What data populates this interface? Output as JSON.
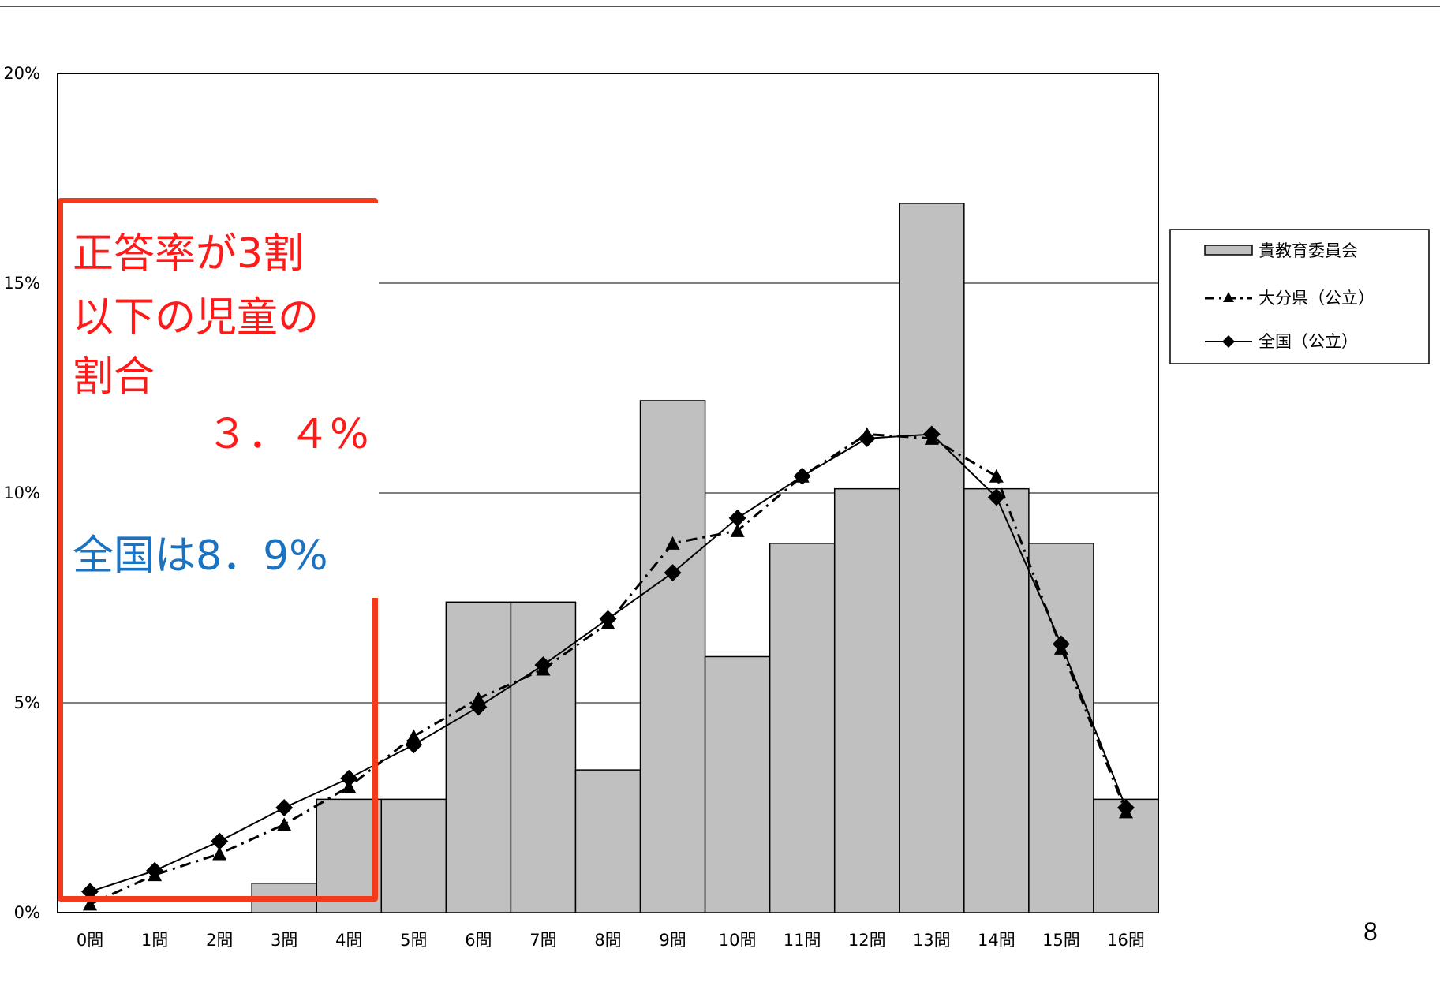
{
  "chart_data": {
    "type": "bar",
    "categories": [
      "0問",
      "1問",
      "2問",
      "3問",
      "4問",
      "5問",
      "6問",
      "7問",
      "8問",
      "9問",
      "10問",
      "11問",
      "12問",
      "13問",
      "14問",
      "15問",
      "16問"
    ],
    "series": [
      {
        "name": "貴教育委員会",
        "kind": "bar",
        "color": "#c0c0c0",
        "values": [
          0,
          0,
          0,
          0.7,
          2.7,
          2.7,
          7.4,
          7.4,
          3.4,
          12.2,
          6.1,
          8.8,
          10.1,
          16.9,
          10.1,
          8.8,
          2.7
        ]
      },
      {
        "name": "大分県（公立）",
        "kind": "line",
        "marker": "triangle",
        "line_style": "dash-dot",
        "color": "#000000",
        "values": [
          0.2,
          0.9,
          1.4,
          2.1,
          3.0,
          4.2,
          5.1,
          5.8,
          6.9,
          8.8,
          9.1,
          10.4,
          11.4,
          11.3,
          10.4,
          6.3,
          2.4
        ]
      },
      {
        "name": "全国（公立）",
        "kind": "line",
        "marker": "diamond",
        "line_style": "solid",
        "color": "#000000",
        "values": [
          0.5,
          1.0,
          1.7,
          2.5,
          3.2,
          4.0,
          4.9,
          5.9,
          7.0,
          8.1,
          9.4,
          10.4,
          11.3,
          11.4,
          9.9,
          6.4,
          2.5
        ]
      }
    ],
    "y_ticks": [
      "0%",
      "5%",
      "10%",
      "15%",
      "20%"
    ],
    "y_tick_values": [
      0,
      5,
      10,
      15,
      20
    ],
    "ylim": [
      0,
      20
    ],
    "grid": true,
    "legend_position": "right"
  },
  "annotation": {
    "line1": "正答率が3割",
    "line2": "以下の児童の",
    "line3": "割合",
    "value": "３．４%",
    "national": "全国は8．9%",
    "border_color": "#f33a1b",
    "text_color": "#ff1a1a",
    "national_color": "#1a73c2"
  },
  "page_number": "8"
}
